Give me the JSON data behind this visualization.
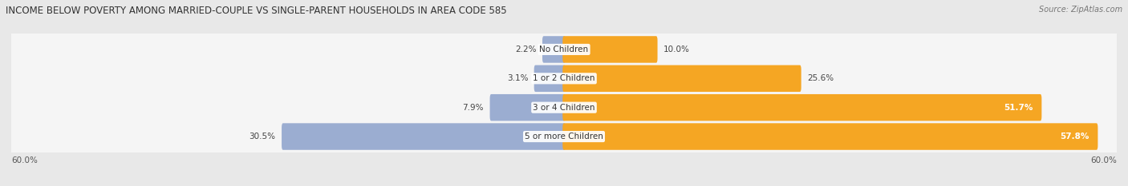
{
  "title": "INCOME BELOW POVERTY AMONG MARRIED-COUPLE VS SINGLE-PARENT HOUSEHOLDS IN AREA CODE 585",
  "source": "Source: ZipAtlas.com",
  "categories": [
    "No Children",
    "1 or 2 Children",
    "3 or 4 Children",
    "5 or more Children"
  ],
  "married_values": [
    2.2,
    3.1,
    7.9,
    30.5
  ],
  "single_values": [
    10.0,
    25.6,
    51.7,
    57.8
  ],
  "married_color": "#9badd1",
  "single_color": "#f5a623",
  "bar_height": 0.62,
  "max_val": 60.0,
  "background_color": "#e8e8e8",
  "bar_bg_color": "#f5f5f5",
  "title_fontsize": 8.5,
  "label_fontsize": 7.5,
  "value_fontsize": 7.5,
  "axis_fontsize": 7.5,
  "legend_fontsize": 7.5,
  "source_fontsize": 7.0,
  "single_value_inside_threshold": 40.0
}
